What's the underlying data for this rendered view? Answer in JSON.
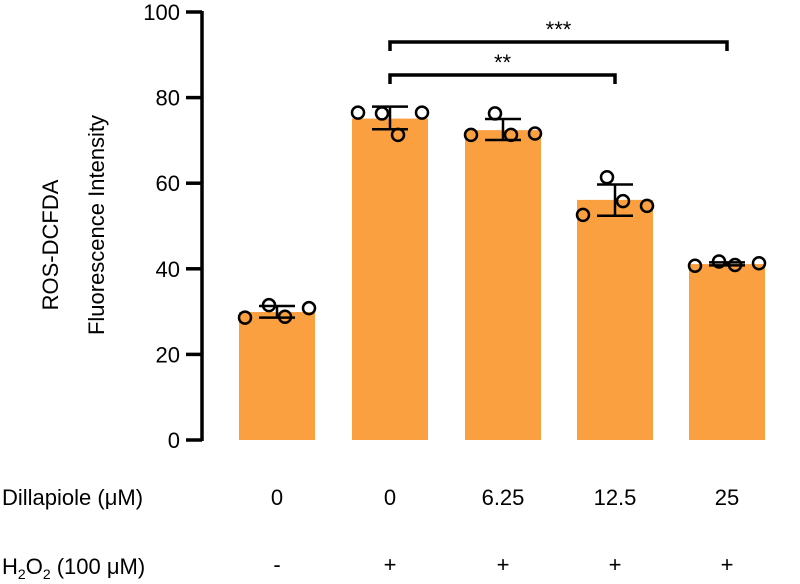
{
  "chart_data": {
    "type": "bar",
    "ylabel_line1": "ROS-DCFDA",
    "ylabel_line2": "Fluorescence Intensity",
    "ylim": [
      0,
      100
    ],
    "yticks": [
      0,
      20,
      40,
      60,
      80,
      100
    ],
    "grid": false,
    "bar_color": "#FBA040",
    "row_labels": {
      "dillapiole": "Dillapiole (μM)",
      "h2o2_prefix": "H",
      "h2o2_sub": "2",
      "h2o2_mid": "O",
      "h2o2_sub2": "2",
      "h2o2_suffix": " (100 μM)"
    },
    "dillapiole": [
      "0",
      "0",
      "6.25",
      "12.5",
      "25"
    ],
    "h2o2": [
      "-",
      "+",
      "+",
      "+",
      "+"
    ],
    "values": [
      29.9,
      75.1,
      72.4,
      56.1,
      41.1
    ],
    "error_upper": [
      31.3,
      77.9,
      75.0,
      59.7,
      41.5
    ],
    "error_lower": [
      28.6,
      72.6,
      70.1,
      52.4,
      40.8
    ],
    "points": [
      [
        28.6,
        31.5,
        28.8,
        30.8
      ],
      [
        76.5,
        76.3,
        71.3,
        76.5
      ],
      [
        71.3,
        76.3,
        71.3,
        71.6
      ],
      [
        52.6,
        61.4,
        55.8,
        54.7
      ],
      [
        40.7,
        41.7,
        40.9,
        41.3
      ]
    ],
    "significance": [
      {
        "from": 1,
        "to": 3,
        "label": "**"
      },
      {
        "from": 1,
        "to": 4,
        "label": "***"
      }
    ]
  }
}
